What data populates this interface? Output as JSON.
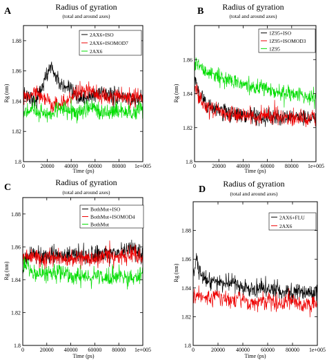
{
  "figure": {
    "description_source": "four panel Radius of gyration time series",
    "colors": {
      "black": "#000000",
      "red": "#ee0000",
      "green": "#00dd00"
    }
  },
  "chart_data": [
    {
      "type": "line",
      "panel_label": "A",
      "title": "Radius of gyration",
      "subtitle": "(total and around axes)",
      "xlabel": "Time (ps)",
      "ylabel": "Rg (nm)",
      "xlim": [
        0,
        100000
      ],
      "ylim": [
        1.8,
        1.89
      ],
      "x_ticks": [
        0,
        20000,
        40000,
        60000,
        80000,
        100000
      ],
      "x_tick_labels": [
        "0",
        "20000",
        "40000",
        "60000",
        "80000",
        "1e+005"
      ],
      "y_ticks": [
        1.8,
        1.82,
        1.84,
        1.86,
        1.88
      ],
      "y_tick_labels": [
        "1.8",
        "1.82",
        "1.84",
        "1.86",
        "1.88"
      ],
      "legend_position": "top-right",
      "series": [
        {
          "name": "2AX6+ISO",
          "color": "#000000",
          "x": [
            0,
            5000,
            10000,
            15000,
            20000,
            23000,
            26000,
            30000,
            35000,
            40000,
            45000,
            50000,
            55000,
            60000,
            65000,
            70000,
            75000,
            80000,
            85000,
            90000,
            95000,
            100000
          ],
          "y": [
            1.845,
            1.843,
            1.84,
            1.848,
            1.858,
            1.864,
            1.858,
            1.852,
            1.848,
            1.846,
            1.843,
            1.842,
            1.842,
            1.844,
            1.846,
            1.845,
            1.843,
            1.842,
            1.843,
            1.842,
            1.841,
            1.842
          ]
        },
        {
          "name": "2AX6+ISOMOD7",
          "color": "#ee0000",
          "x": [
            0,
            5000,
            10000,
            15000,
            20000,
            25000,
            30000,
            35000,
            40000,
            45000,
            50000,
            55000,
            60000,
            65000,
            70000,
            75000,
            80000,
            85000,
            90000,
            95000,
            100000
          ],
          "y": [
            1.842,
            1.845,
            1.846,
            1.843,
            1.84,
            1.837,
            1.838,
            1.84,
            1.843,
            1.845,
            1.846,
            1.847,
            1.845,
            1.843,
            1.842,
            1.843,
            1.844,
            1.843,
            1.842,
            1.843,
            1.844
          ]
        },
        {
          "name": "2AX6",
          "color": "#00dd00",
          "x": [
            0,
            5000,
            10000,
            15000,
            20000,
            25000,
            30000,
            35000,
            40000,
            45000,
            50000,
            55000,
            60000,
            65000,
            70000,
            75000,
            80000,
            85000,
            90000,
            95000,
            100000
          ],
          "y": [
            1.832,
            1.834,
            1.835,
            1.833,
            1.831,
            1.832,
            1.834,
            1.835,
            1.833,
            1.832,
            1.834,
            1.836,
            1.835,
            1.833,
            1.832,
            1.834,
            1.835,
            1.833,
            1.832,
            1.834,
            1.835
          ]
        }
      ]
    },
    {
      "type": "line",
      "panel_label": "B",
      "title": "Radius of gyration",
      "subtitle": "(total and around axes)",
      "xlabel": "Time (ps)",
      "ylabel": "Rg (nm)",
      "xlim": [
        0,
        100000
      ],
      "ylim": [
        1.8,
        1.88
      ],
      "x_ticks": [
        0,
        20000,
        40000,
        60000,
        80000,
        100000
      ],
      "x_tick_labels": [
        "0",
        "20000",
        "40000",
        "60000",
        "80000",
        "1e+005"
      ],
      "y_ticks": [
        1.8,
        1.82,
        1.84,
        1.86
      ],
      "y_tick_labels": [
        "1.8",
        "1.82",
        "1.84",
        "1.86"
      ],
      "legend_position": "top-right",
      "series": [
        {
          "name": "1Z95+ISO",
          "color": "#000000",
          "x": [
            0,
            5000,
            10000,
            15000,
            20000,
            25000,
            30000,
            35000,
            40000,
            45000,
            50000,
            55000,
            60000,
            65000,
            70000,
            75000,
            80000,
            85000,
            90000,
            95000,
            100000
          ],
          "y": [
            1.848,
            1.838,
            1.834,
            1.832,
            1.83,
            1.829,
            1.828,
            1.828,
            1.827,
            1.828,
            1.827,
            1.826,
            1.827,
            1.826,
            1.826,
            1.827,
            1.826,
            1.826,
            1.827,
            1.826,
            1.826
          ]
        },
        {
          "name": "1Z95+ISOMOD3",
          "color": "#ee0000",
          "x": [
            0,
            5000,
            10000,
            15000,
            20000,
            25000,
            30000,
            35000,
            40000,
            45000,
            50000,
            55000,
            60000,
            65000,
            70000,
            75000,
            80000,
            85000,
            90000,
            95000,
            100000
          ],
          "y": [
            1.845,
            1.836,
            1.832,
            1.83,
            1.829,
            1.828,
            1.828,
            1.827,
            1.828,
            1.827,
            1.826,
            1.827,
            1.826,
            1.826,
            1.827,
            1.826,
            1.826,
            1.826,
            1.825,
            1.826,
            1.826
          ]
        },
        {
          "name": "1Z95",
          "color": "#00dd00",
          "x": [
            0,
            5000,
            10000,
            15000,
            20000,
            25000,
            30000,
            35000,
            40000,
            45000,
            50000,
            55000,
            60000,
            65000,
            70000,
            75000,
            80000,
            85000,
            90000,
            95000,
            100000
          ],
          "y": [
            1.858,
            1.856,
            1.853,
            1.851,
            1.85,
            1.848,
            1.847,
            1.846,
            1.845,
            1.844,
            1.843,
            1.843,
            1.842,
            1.842,
            1.841,
            1.841,
            1.84,
            1.84,
            1.839,
            1.838,
            1.838
          ]
        }
      ]
    },
    {
      "type": "line",
      "panel_label": "C",
      "title": "Radius of gyration",
      "subtitle": "(total and around axes)",
      "xlabel": "Time (ps)",
      "ylabel": "Rg (nm)",
      "xlim": [
        0,
        100000
      ],
      "ylim": [
        1.8,
        1.89
      ],
      "x_ticks": [
        0,
        20000,
        40000,
        60000,
        80000,
        100000
      ],
      "x_tick_labels": [
        "0",
        "20000",
        "40000",
        "60000",
        "80000",
        "1e+005"
      ],
      "y_ticks": [
        1.8,
        1.82,
        1.84,
        1.86,
        1.88
      ],
      "y_tick_labels": [
        "1.8",
        "1.82",
        "1.84",
        "1.86",
        "1.88"
      ],
      "legend_position": "top-right",
      "series": [
        {
          "name": "BothMut+ISO",
          "color": "#000000",
          "x": [
            0,
            5000,
            10000,
            15000,
            20000,
            25000,
            30000,
            35000,
            40000,
            45000,
            50000,
            55000,
            60000,
            65000,
            70000,
            75000,
            80000,
            85000,
            90000,
            95000,
            100000
          ],
          "y": [
            1.848,
            1.854,
            1.856,
            1.855,
            1.854,
            1.855,
            1.856,
            1.855,
            1.854,
            1.855,
            1.855,
            1.854,
            1.855,
            1.856,
            1.855,
            1.855,
            1.856,
            1.857,
            1.858,
            1.857,
            1.856
          ]
        },
        {
          "name": "BothMut+ISOMOD4",
          "color": "#ee0000",
          "x": [
            0,
            5000,
            10000,
            15000,
            20000,
            25000,
            30000,
            35000,
            40000,
            45000,
            50000,
            55000,
            60000,
            65000,
            70000,
            75000,
            80000,
            85000,
            90000,
            95000,
            100000
          ],
          "y": [
            1.853,
            1.854,
            1.853,
            1.852,
            1.853,
            1.854,
            1.853,
            1.852,
            1.853,
            1.854,
            1.853,
            1.852,
            1.853,
            1.854,
            1.855,
            1.854,
            1.853,
            1.855,
            1.856,
            1.855,
            1.853
          ]
        },
        {
          "name": "BothMut",
          "color": "#00dd00",
          "x": [
            0,
            5000,
            10000,
            15000,
            20000,
            25000,
            30000,
            35000,
            40000,
            45000,
            50000,
            55000,
            60000,
            65000,
            70000,
            75000,
            80000,
            85000,
            90000,
            95000,
            100000
          ],
          "y": [
            1.852,
            1.846,
            1.844,
            1.843,
            1.844,
            1.845,
            1.844,
            1.843,
            1.842,
            1.843,
            1.843,
            1.842,
            1.843,
            1.842,
            1.841,
            1.842,
            1.843,
            1.842,
            1.841,
            1.842,
            1.842
          ]
        }
      ]
    },
    {
      "type": "line",
      "panel_label": "D",
      "title": "Radius of gyration",
      "subtitle": "(total and around axes)",
      "xlabel": "Time (ps)",
      "ylabel": "Rg (nm)",
      "xlim": [
        0,
        100000
      ],
      "ylim": [
        1.8,
        1.9
      ],
      "x_ticks": [
        0,
        20000,
        40000,
        60000,
        80000,
        100000
      ],
      "x_tick_labels": [
        "0",
        "20000",
        "40000",
        "60000",
        "80000",
        "1e+005"
      ],
      "y_ticks": [
        1.8,
        1.82,
        1.84,
        1.86,
        1.88
      ],
      "y_tick_labels": [
        "1.8",
        "1.82",
        "1.84",
        "1.86",
        "1.88"
      ],
      "legend_position": "top-right",
      "series": [
        {
          "name": "2AX6+FLU",
          "color": "#000000",
          "x": [
            0,
            3000,
            6000,
            10000,
            15000,
            20000,
            25000,
            30000,
            35000,
            40000,
            45000,
            50000,
            55000,
            60000,
            65000,
            70000,
            75000,
            80000,
            85000,
            90000,
            95000,
            100000
          ],
          "y": [
            1.852,
            1.858,
            1.85,
            1.846,
            1.843,
            1.844,
            1.842,
            1.845,
            1.843,
            1.841,
            1.839,
            1.838,
            1.84,
            1.841,
            1.839,
            1.838,
            1.837,
            1.838,
            1.839,
            1.838,
            1.837,
            1.838
          ]
        },
        {
          "name": "2AX6",
          "color": "#ee0000",
          "x": [
            0,
            5000,
            10000,
            15000,
            20000,
            25000,
            30000,
            35000,
            40000,
            45000,
            50000,
            55000,
            60000,
            65000,
            70000,
            75000,
            80000,
            85000,
            90000,
            95000,
            100000
          ],
          "y": [
            1.835,
            1.834,
            1.832,
            1.833,
            1.834,
            1.832,
            1.831,
            1.833,
            1.832,
            1.83,
            1.829,
            1.831,
            1.832,
            1.83,
            1.829,
            1.83,
            1.831,
            1.829,
            1.828,
            1.829,
            1.83
          ]
        }
      ]
    }
  ]
}
